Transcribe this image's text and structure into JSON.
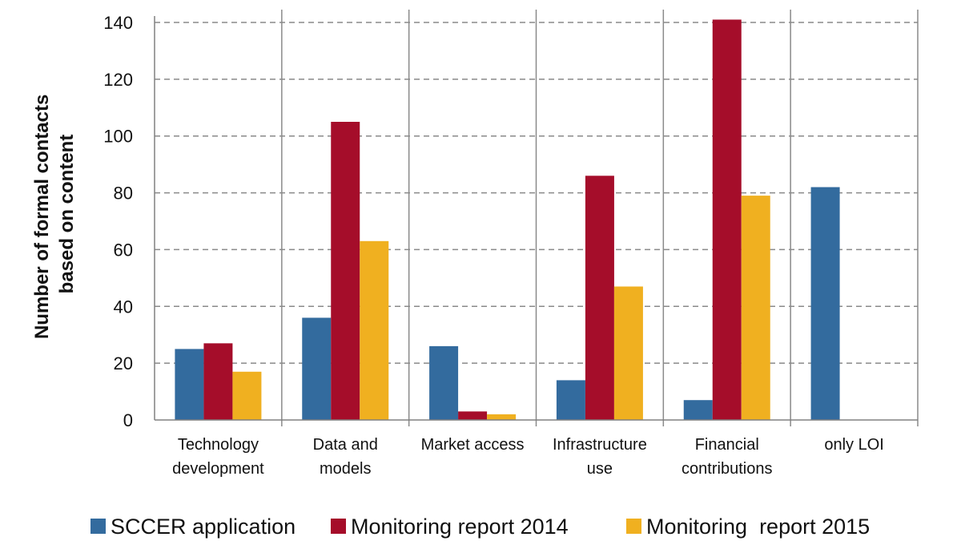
{
  "chart_data": {
    "type": "bar",
    "title": "",
    "xlabel": "",
    "ylabel_lines": [
      "Number of formal contacts",
      "based on content"
    ],
    "ylim": [
      0,
      140
    ],
    "yticks": [
      0,
      20,
      40,
      60,
      80,
      100,
      120,
      140
    ],
    "grid": "horizontal dashed",
    "legend_position": "bottom",
    "categories": [
      [
        "Technology",
        "development"
      ],
      [
        "Data and",
        "models"
      ],
      [
        "Market access"
      ],
      [
        "Infrastructure",
        "use"
      ],
      [
        "Financial",
        "contributions"
      ],
      [
        "only LOI"
      ]
    ],
    "series": [
      {
        "name": "SCCER application",
        "color": "#336b9e",
        "values": [
          25,
          36,
          26,
          14,
          7,
          82
        ]
      },
      {
        "name": "Monitoring report 2014",
        "color": "#a50d2a",
        "values": [
          27,
          105,
          3,
          86,
          141,
          0
        ]
      },
      {
        "name": "Monitoring  report 2015",
        "color": "#f0b020",
        "values": [
          17,
          63,
          2,
          47,
          79,
          0
        ]
      }
    ]
  }
}
